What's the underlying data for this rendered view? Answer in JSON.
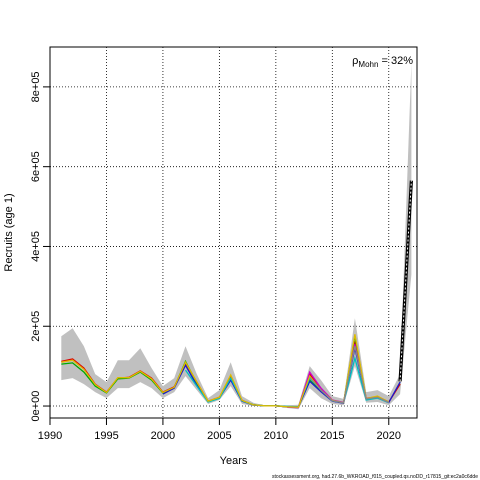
{
  "chart_data": {
    "type": "line",
    "xlabel": "Years",
    "ylabel": "Recruits (age 1)",
    "xlim": [
      1990,
      2022.5
    ],
    "ylim": [
      -30000,
      900000
    ],
    "x_ticks": [
      1990,
      1995,
      2000,
      2005,
      2010,
      2015,
      2020
    ],
    "y_ticks": [
      0,
      200000,
      400000,
      600000,
      800000
    ],
    "y_tick_labels": [
      "0e+00",
      "2e+05",
      "4e+05",
      "6e+05",
      "8e+05"
    ],
    "grid": true,
    "annotation": {
      "symbol": "ρ",
      "subscript": "Mohn",
      "text": " = 32%"
    },
    "footer": "stockassessment.org, had.27.6b_WKROAD_f015_coupled.qs.noDD_r17815_git:ec2a0c6dde",
    "years": [
      1991,
      1992,
      1993,
      1994,
      1995,
      1996,
      1997,
      1998,
      1999,
      2000,
      2001,
      2002,
      2003,
      2004,
      2005,
      2006,
      2007,
      2008,
      2009,
      2010,
      2011,
      2012,
      2013,
      2014,
      2015,
      2016,
      2017,
      2018,
      2019,
      2020,
      2021,
      2022
    ],
    "ci": {
      "lower": [
        65000,
        70000,
        55000,
        35000,
        20000,
        45000,
        45000,
        60000,
        45000,
        20000,
        35000,
        75000,
        40000,
        5000,
        15000,
        50000,
        5000,
        0,
        0,
        0,
        -5000,
        -8000,
        45000,
        20000,
        5000,
        2000,
        100000,
        8000,
        10000,
        2000,
        30000,
        330000
      ],
      "upper": [
        175000,
        195000,
        150000,
        80000,
        60000,
        115000,
        115000,
        145000,
        95000,
        50000,
        70000,
        150000,
        80000,
        20000,
        40000,
        110000,
        25000,
        8000,
        2000,
        2000,
        2000,
        3000,
        100000,
        65000,
        25000,
        18000,
        220000,
        35000,
        40000,
        25000,
        80000,
        860000
      ]
    },
    "series": [
      {
        "color": "#000000",
        "values": [
          null,
          null,
          null,
          null,
          null,
          null,
          null,
          null,
          null,
          null,
          null,
          null,
          null,
          null,
          null,
          null,
          null,
          null,
          null,
          null,
          null,
          null,
          null,
          null,
          null,
          null,
          null,
          null,
          null,
          null,
          62000,
          565000
        ]
      },
      {
        "color": "#dd0000",
        "values": [
          112000,
          118000,
          95000,
          55000,
          35000,
          70000,
          72000,
          88000,
          70000,
          35000,
          48000,
          108000,
          60000,
          12000,
          22000,
          72000,
          14000,
          3000,
          500,
          500,
          -2000,
          -3000,
          80000,
          42000,
          14000,
          8000,
          162000,
          18000,
          24000,
          10000,
          55000,
          null
        ]
      },
      {
        "color": "#00aa00",
        "values": [
          105000,
          108000,
          85000,
          50000,
          33000,
          68000,
          70000,
          85000,
          65000,
          33000,
          46000,
          112000,
          58000,
          11000,
          21000,
          68000,
          13000,
          3000,
          500,
          500,
          -2000,
          -3000,
          65000,
          38000,
          13000,
          8000,
          175000,
          17000,
          22000,
          10000,
          null,
          null
        ]
      },
      {
        "color": "#1a1acc",
        "values": [
          null,
          null,
          null,
          null,
          null,
          null,
          null,
          null,
          null,
          30000,
          45000,
          102000,
          52000,
          11000,
          20000,
          65000,
          12000,
          2500,
          500,
          500,
          -2000,
          -2000,
          62000,
          36000,
          12000,
          7000,
          145000,
          16000,
          21000,
          9000,
          60000,
          null
        ]
      },
      {
        "color": "#00bfbf",
        "values": [
          null,
          null,
          null,
          null,
          null,
          null,
          null,
          null,
          null,
          null,
          null,
          90000,
          50000,
          10000,
          19000,
          70000,
          13000,
          3000,
          500,
          500,
          -1000,
          -2000,
          70000,
          40000,
          13000,
          8000,
          120000,
          15000,
          20000,
          8000,
          null,
          null
        ]
      },
      {
        "color": "#cc00cc",
        "values": [
          null,
          null,
          null,
          null,
          null,
          null,
          null,
          null,
          null,
          null,
          null,
          null,
          null,
          null,
          null,
          null,
          null,
          null,
          null,
          null,
          -3000,
          -4000,
          85000,
          45000,
          15000,
          9000,
          155000,
          20000,
          23000,
          9000,
          null,
          null
        ]
      },
      {
        "color": "#ddbb00",
        "values": [
          110000,
          115000,
          92000,
          54000,
          34000,
          71000,
          71000,
          87000,
          68000,
          34000,
          47000,
          110000,
          60000,
          12000,
          22000,
          78000,
          14000,
          3000,
          500,
          500,
          -2000,
          -3000,
          75000,
          40000,
          14000,
          8000,
          180000,
          19000,
          25000,
          10000,
          null,
          null
        ]
      },
      {
        "color": "#888888",
        "values": [
          null,
          null,
          null,
          null,
          null,
          null,
          null,
          null,
          null,
          null,
          null,
          null,
          null,
          null,
          null,
          null,
          null,
          null,
          null,
          null,
          null,
          null,
          72000,
          40000,
          13000,
          8000,
          150000,
          18000,
          22000,
          9000,
          null,
          null
        ]
      }
    ]
  }
}
